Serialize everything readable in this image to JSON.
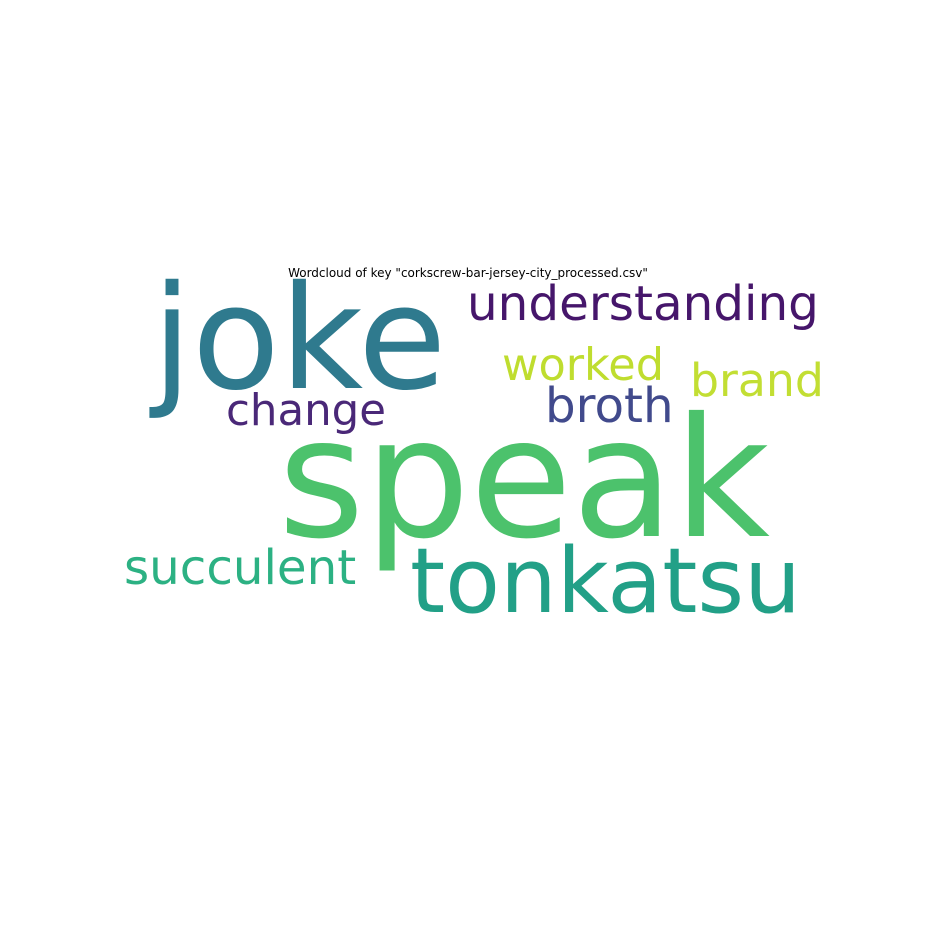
{
  "chart_data": {
    "type": "wordcloud",
    "title": "Wordcloud of key \"corkscrew-bar-jersey-city_processed.csv\"",
    "words": [
      {
        "text": "speak",
        "weight": 1.0,
        "color": "#4cc26c"
      },
      {
        "text": "joke",
        "weight": 0.74,
        "color": "#2f7a8e"
      },
      {
        "text": "tonkatsu",
        "weight": 0.58,
        "color": "#22a087"
      },
      {
        "text": "understanding",
        "weight": 0.34,
        "color": "#46166b"
      },
      {
        "text": "succulent",
        "weight": 0.32,
        "color": "#2cb183"
      },
      {
        "text": "worked",
        "weight": 0.3,
        "color": "#bfdd2f"
      },
      {
        "text": "brand",
        "weight": 0.3,
        "color": "#c2de33"
      },
      {
        "text": "broth",
        "weight": 0.3,
        "color": "#414a8c"
      },
      {
        "text": "change",
        "weight": 0.3,
        "color": "#4a2878"
      }
    ]
  }
}
